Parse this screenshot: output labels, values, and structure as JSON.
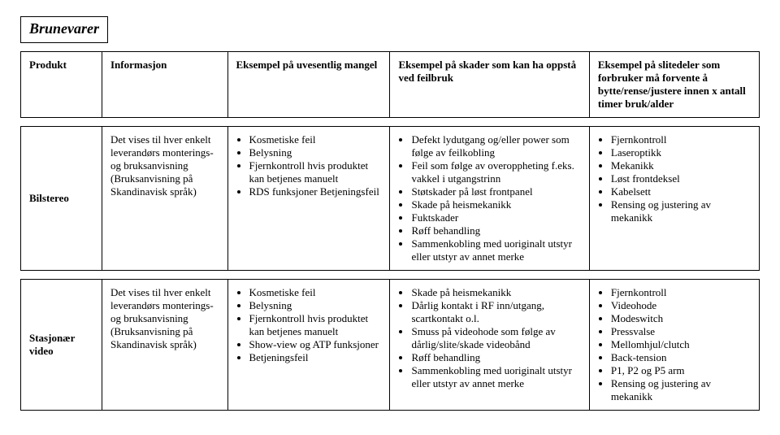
{
  "title": "Brunevarer",
  "columns": [
    "Produkt",
    "Informasjon",
    "Eksempel på uvesentlig mangel",
    "Eksempel på skader som kan ha oppstå ved feilbruk",
    "Eksempel på slitedeler som forbruker må forvente å bytte/rense/justere innen x antall timer bruk/alder"
  ],
  "rows": [
    {
      "produkt": "Bilstereo",
      "informasjon": "Det vises til hver enkelt leverandørs monterings- og bruksanvisning (Bruksanvisning på Skandinavisk språk)",
      "mangel": [
        "Kosmetiske feil",
        "Belysning",
        "Fjernkontroll hvis produktet kan betjenes manuelt",
        "RDS funksjoner Betjeningsfeil"
      ],
      "skader": [
        "Defekt lydutgang og/eller power som følge av feilkobling",
        "Feil som følge av overoppheting f.eks. vakkel i utgangstrinn",
        "Støtskader på løst frontpanel",
        "Skade på heismekanikk",
        "Fuktskader",
        "Røff behandling",
        "Sammenkobling med uoriginalt utstyr eller utstyr av annet merke"
      ],
      "slitedeler": [
        "Fjernkontroll",
        "Laseroptikk",
        "Mekanikk",
        "Løst frontdeksel",
        "Kabelsett",
        "Rensing og justering av mekanikk"
      ]
    },
    {
      "produkt": "Stasjonær video",
      "informasjon": "Det vises til hver enkelt leverandørs monterings- og bruksanvisning (Bruksanvisning på Skandinavisk språk)",
      "mangel": [
        "Kosmetiske feil",
        "Belysning",
        "Fjernkontroll hvis produktet kan betjenes manuelt",
        "Show-view og ATP funksjoner",
        "Betjeningsfeil"
      ],
      "skader": [
        "Skade på heismekanikk",
        "Dårlig kontakt i RF inn/utgang, scartkontakt o.l.",
        "Smuss på videohode som følge av dårlig/slite/skade videobånd",
        "Røff behandling",
        "Sammenkobling med uoriginalt utstyr eller utstyr av annet merke"
      ],
      "slitedeler": [
        "Fjernkontroll",
        "Videohode",
        "Modeswitch",
        "Pressvalse",
        "Mellomhjul/clutch",
        "Back-tension",
        "P1, P2 og P5 arm",
        "Rensing og justering av mekanikk"
      ]
    }
  ]
}
